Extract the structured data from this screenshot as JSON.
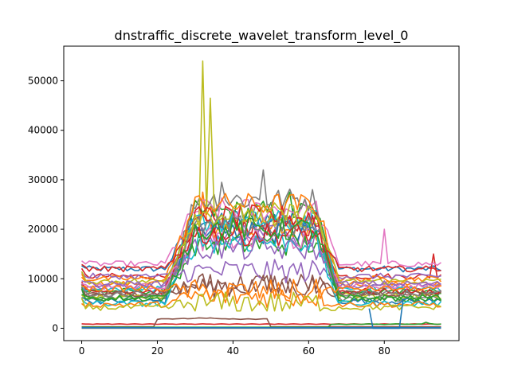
{
  "chart_data": {
    "type": "line",
    "title": "dnstraffic_discrete_wavelet_transform_level_0",
    "xlabel": "",
    "ylabel": "",
    "xlim": [
      -4.75,
      99.75
    ],
    "ylim": [
      -2500,
      57000
    ],
    "xticks": [
      0,
      20,
      40,
      60,
      80
    ],
    "yticks": [
      0,
      10000,
      20000,
      30000,
      40000,
      50000
    ],
    "grid": false,
    "legend": "none",
    "x_start": 0,
    "x_step": 1,
    "num_points": 96,
    "profiles": [
      {
        "base": 12000,
        "peak": 22000,
        "color": "#1f77b4"
      },
      {
        "base": 9000,
        "peak": 20000,
        "color": "#ff7f0e"
      },
      {
        "base": 7500,
        "peak": 23500,
        "color": "#2ca02c"
      },
      {
        "base": 10500,
        "peak": 21000,
        "color": "#d62728"
      },
      {
        "base": 8500,
        "peak": 18500,
        "color": "#9467bd"
      },
      {
        "base": 7000,
        "peak": 9000,
        "color": "#8c564b"
      },
      {
        "base": 13000,
        "peak": 24000,
        "color": "#e377c2"
      },
      {
        "base": 6000,
        "peak": 26000,
        "color": "#7f7f7f"
      },
      {
        "base": 6500,
        "peak": 22000,
        "color": "#bcbd22"
      },
      {
        "base": 8000,
        "peak": 21500,
        "color": "#17becf"
      },
      {
        "base": 5500,
        "peak": 19500,
        "color": "#1f77b4"
      },
      {
        "base": 10000,
        "peak": 25000,
        "color": "#ff7f0e"
      },
      {
        "base": 6000,
        "peak": 17000,
        "color": "#2ca02c"
      },
      {
        "base": 7500,
        "peak": 22500,
        "color": "#d62728"
      },
      {
        "base": 10500,
        "peak": 11500,
        "color": "#9467bd"
      },
      {
        "base": 7000,
        "peak": 8500,
        "color": "#8c564b"
      },
      {
        "base": 8500,
        "peak": 18000,
        "color": "#e377c2"
      },
      {
        "base": 7000,
        "peak": 20500,
        "color": "#7f7f7f"
      },
      {
        "base": 9500,
        "peak": 23000,
        "color": "#bcbd22"
      },
      {
        "base": 5000,
        "peak": 17500,
        "color": "#17becf"
      },
      {
        "base": 4800,
        "peak": 6500,
        "color": "#ff7f0e"
      },
      {
        "base": 12000,
        "peak": 19000,
        "color": "#d62728"
      },
      {
        "base": 9000,
        "peak": 16000,
        "color": "#9467bd"
      },
      {
        "base": 6200,
        "peak": 20000,
        "color": "#2ca02c"
      },
      {
        "base": 8000,
        "peak": 7500,
        "color": "#ff7f0e"
      },
      {
        "base": 4200,
        "peak": 5000,
        "color": "#bcbd22"
      }
    ],
    "low_series": [
      {
        "color": "#d62728",
        "values": [
          900,
          850,
          850,
          800,
          900,
          850,
          850,
          900,
          800,
          850,
          900,
          850,
          800,
          850,
          900,
          850,
          800,
          850,
          900,
          850,
          800,
          850,
          900,
          850,
          850,
          800,
          850,
          900,
          850,
          850,
          800,
          850,
          900,
          850,
          850,
          800,
          850,
          900,
          850,
          800,
          850,
          900,
          850,
          800,
          850,
          900,
          850,
          800,
          850,
          900,
          850,
          800,
          900,
          850,
          800,
          850,
          900,
          850,
          800,
          850,
          900,
          850,
          800,
          850,
          900,
          850,
          800,
          850,
          900,
          850,
          800,
          850,
          900,
          850,
          800,
          850,
          900,
          850,
          800,
          850,
          900,
          850,
          800,
          850,
          900,
          850,
          800,
          850,
          900,
          850,
          800,
          850,
          900,
          850,
          800,
          850
        ]
      },
      {
        "color": "#8c564b",
        "values": [
          300,
          300,
          300,
          300,
          300,
          300,
          300,
          300,
          300,
          300,
          300,
          300,
          300,
          300,
          300,
          300,
          300,
          300,
          300,
          300,
          1800,
          1900,
          1900,
          1900,
          1850,
          1900,
          1950,
          2000,
          1900,
          1950,
          2000,
          2100,
          2050,
          2000,
          2100,
          2000,
          1950,
          1900,
          1900,
          1850,
          1900,
          1850,
          1800,
          1850,
          1900,
          1850,
          1800,
          1850,
          1900,
          1900,
          300,
          300,
          300,
          300,
          300,
          300,
          300,
          300,
          300,
          300,
          300,
          300,
          300,
          300,
          300,
          300,
          300,
          300,
          300,
          300,
          300,
          300,
          300,
          300,
          300,
          300,
          300,
          300,
          300,
          300,
          300,
          300,
          300,
          300,
          300,
          300,
          300,
          300,
          300,
          300,
          300,
          300,
          300,
          300,
          300,
          300
        ]
      },
      {
        "color": "#2ca02c",
        "values": [
          200,
          200,
          200,
          200,
          200,
          200,
          200,
          200,
          200,
          200,
          200,
          200,
          200,
          200,
          200,
          200,
          200,
          200,
          200,
          200,
          200,
          200,
          200,
          200,
          200,
          200,
          200,
          200,
          200,
          200,
          200,
          200,
          200,
          200,
          200,
          200,
          200,
          200,
          200,
          200,
          200,
          200,
          200,
          200,
          200,
          200,
          200,
          200,
          200,
          200,
          200,
          200,
          200,
          200,
          200,
          200,
          200,
          200,
          200,
          200,
          200,
          200,
          200,
          200,
          200,
          200,
          800,
          800,
          850,
          800,
          750,
          800,
          850,
          800,
          800,
          850,
          900,
          800,
          850,
          800,
          750,
          800,
          850,
          900,
          850,
          800,
          850,
          800,
          800,
          850,
          900,
          1200,
          950,
          850,
          800,
          850
        ]
      },
      {
        "color": "#7f7f7f",
        "values": [
          0,
          0,
          0,
          0,
          0,
          0,
          0,
          0,
          0,
          0,
          0,
          0,
          0,
          0,
          0,
          0,
          0,
          0,
          0,
          0,
          0,
          0,
          0,
          0,
          0,
          0,
          0,
          0,
          0,
          0,
          0,
          0,
          0,
          0,
          0,
          0,
          0,
          0,
          0,
          0,
          0,
          0,
          0,
          0,
          0,
          0,
          0,
          0,
          0,
          0,
          0,
          0,
          0,
          0,
          0,
          0,
          0,
          0,
          0,
          0,
          0,
          0,
          0,
          0,
          0,
          0,
          0,
          0,
          0,
          0,
          0,
          0,
          0,
          0,
          0,
          0,
          0,
          0,
          0,
          0,
          0,
          0,
          0,
          0,
          0,
          0,
          0,
          0,
          0,
          0,
          0,
          0,
          0,
          0,
          0,
          0
        ]
      },
      {
        "color": "#1f77b4",
        "values": [
          100,
          100,
          100,
          100,
          100,
          100,
          100,
          100,
          100,
          100,
          100,
          100,
          100,
          100,
          100,
          100,
          100,
          100,
          100,
          100,
          100,
          100,
          100,
          100,
          100,
          100,
          100,
          100,
          100,
          100,
          100,
          100,
          100,
          100,
          100,
          100,
          100,
          100,
          100,
          100,
          100,
          100,
          100,
          100,
          100,
          100,
          100,
          100,
          100,
          100,
          100,
          100,
          100,
          100,
          100,
          100,
          100,
          100,
          100,
          100,
          100,
          100,
          100,
          100,
          100,
          100,
          100,
          100,
          100,
          100,
          100,
          100,
          100,
          100,
          100,
          100,
          100,
          100,
          100,
          100,
          100,
          100,
          100,
          100,
          100,
          100,
          100,
          100,
          100,
          100,
          100,
          100,
          100,
          100,
          100,
          100
        ]
      }
    ],
    "spikes": [
      {
        "series": 8,
        "x": 32,
        "y": 54000
      },
      {
        "series": 8,
        "x": 34,
        "y": 46500
      },
      {
        "series": 7,
        "x": 37,
        "y": 29500
      },
      {
        "series": 7,
        "x": 48,
        "y": 32000
      },
      {
        "series": 6,
        "x": 80,
        "y": 20000
      },
      {
        "series": 3,
        "x": 93,
        "y": 15000
      },
      {
        "series": 2,
        "x": 55,
        "y": 27500
      },
      {
        "series": 1,
        "x": 32,
        "y": 27500
      }
    ],
    "dips": [
      {
        "color": "#1f77b4",
        "x": [
          76,
          77,
          78,
          84,
          85
        ],
        "y": [
          4000,
          0,
          0,
          0,
          6000
        ]
      }
    ]
  }
}
